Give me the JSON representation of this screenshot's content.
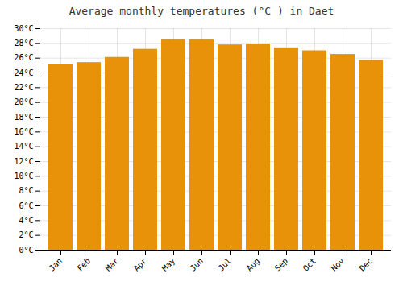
{
  "chart_data": {
    "type": "bar",
    "title": "Average monthly temperatures (°C ) in Daet",
    "categories": [
      "Jan",
      "Feb",
      "Mar",
      "Apr",
      "May",
      "Jun",
      "Jul",
      "Aug",
      "Sep",
      "Oct",
      "Nov",
      "Dec"
    ],
    "values": [
      25.1,
      25.4,
      26.1,
      27.2,
      28.5,
      28.5,
      27.8,
      27.9,
      27.4,
      27.0,
      26.5,
      25.7
    ],
    "color": "#E8920A",
    "ylim": [
      0,
      30
    ],
    "yticks": [
      {
        "value": 0,
        "label": "0°C"
      },
      {
        "value": 2,
        "label": "2°C"
      },
      {
        "value": 4,
        "label": "4°C"
      },
      {
        "value": 6,
        "label": "6°C"
      },
      {
        "value": 8,
        "label": "8°C"
      },
      {
        "value": 10,
        "label": "10°C"
      },
      {
        "value": 12,
        "label": "12°C"
      },
      {
        "value": 14,
        "label": "14°C"
      },
      {
        "value": 16,
        "label": "16°C"
      },
      {
        "value": 18,
        "label": "18°C"
      },
      {
        "value": 20,
        "label": "20°C"
      },
      {
        "value": 22,
        "label": "22°C"
      },
      {
        "value": 24,
        "label": "24°C"
      },
      {
        "value": 26,
        "label": "26°C"
      },
      {
        "value": 28,
        "label": "28°C"
      },
      {
        "value": 30,
        "label": "30°C"
      }
    ],
    "grid": true
  }
}
